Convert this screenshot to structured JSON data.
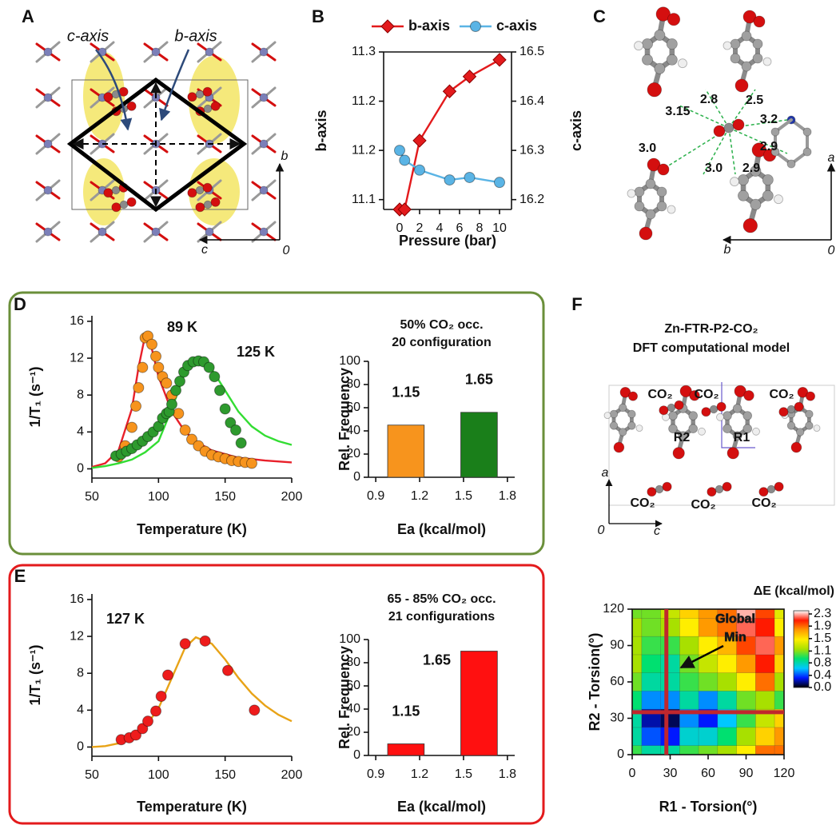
{
  "panel_labels": [
    "A",
    "B",
    "C",
    "D",
    "E",
    "F"
  ],
  "panel_a": {
    "labels": [
      "c-axis",
      "b-axis"
    ],
    "axes": [
      "b",
      "c",
      "0"
    ]
  },
  "panel_c": {
    "distances": [
      "3.15",
      "2.8",
      "2.5",
      "3.2",
      "3.0",
      "2.9",
      "3.0",
      "2.9"
    ],
    "axes": [
      "b",
      "0",
      "a"
    ]
  },
  "panel_f_model": {
    "title": "Zn-FTR-P2-CO₂",
    "subtitle": "DFT computational model",
    "molecule_labels": [
      "CO₂",
      "CO₂",
      "CO₂",
      "CO₂",
      "CO₂",
      "CO₂"
    ],
    "ring_labels": [
      "R2",
      "R1"
    ],
    "axes": [
      "a",
      "0",
      "c"
    ]
  },
  "chart_data": [
    {
      "type": "line",
      "legend": "top",
      "box": true,
      "x": [
        0,
        0.5,
        2,
        5,
        7,
        10
      ],
      "xlim": [
        -1.6,
        11.2
      ],
      "xticks": [
        0,
        2,
        4,
        6,
        8,
        10
      ],
      "ylim": [
        11.09,
        11.25
      ],
      "yticks": [
        11.1,
        {
          "value": 11.15,
          "label": "11.2"
        },
        11.2,
        {
          "value": 11.25,
          "label": "11.3"
        }
      ],
      "y2lim": [
        16.18,
        16.5
      ],
      "y2ticks": [
        16.2,
        16.3,
        16.4,
        16.5
      ],
      "xlabel": "Pressure (bar)",
      "ylabel": "b-axis",
      "y2label": "c-axis",
      "series": [
        {
          "name": "b-axis",
          "color": "#e31a1c",
          "marker": "diamond",
          "values": [
            11.09,
            11.09,
            11.16,
            11.21,
            11.225,
            11.242
          ]
        },
        {
          "name": "c-axis",
          "color": "#5ab4e5",
          "marker": "circle",
          "axis": "y2",
          "values": [
            16.3,
            16.28,
            16.26,
            16.24,
            16.245,
            16.235
          ]
        }
      ]
    },
    {
      "type": "scatter",
      "xlabel": "Temperature (K)",
      "ylabel": "1/T₁ (s⁻¹)",
      "xlim": [
        50,
        200
      ],
      "xticks": [
        50,
        100,
        150,
        200
      ],
      "ylim": [
        -1,
        16.6
      ],
      "yticks": [
        0,
        4,
        8,
        12,
        16
      ],
      "series": [
        {
          "mode": "line",
          "color": "#e8202a",
          "x": [
            50,
            60,
            70,
            80,
            85,
            90,
            95,
            100,
            110,
            120,
            130,
            140,
            160,
            180,
            200
          ],
          "values": [
            0.2,
            0.6,
            2,
            6.5,
            11,
            14.5,
            13,
            10,
            6.2,
            4,
            2.8,
            2,
            1.2,
            0.9,
            0.7
          ]
        },
        {
          "mode": "line",
          "color": "#33dd33",
          "x": [
            50,
            60,
            70,
            80,
            90,
            100,
            110,
            120,
            130,
            140,
            150,
            160,
            170,
            180,
            190,
            200
          ],
          "values": [
            0.1,
            0.3,
            0.6,
            1,
            1.8,
            3,
            6.5,
            10.5,
            11.8,
            10.8,
            8.5,
            6.2,
            4.6,
            3.6,
            3,
            2.6
          ]
        },
        {
          "mode": "markers",
          "color": "#f7941d",
          "x": [
            70,
            75,
            80,
            83,
            85,
            88,
            90,
            92,
            95,
            98,
            100,
            103,
            106,
            110,
            115,
            120,
            125,
            130,
            135,
            140,
            145,
            150,
            155,
            160,
            165,
            170
          ],
          "values": [
            1.3,
            2.5,
            4.5,
            6.8,
            8.8,
            11,
            14.2,
            14.4,
            13.5,
            12.2,
            11,
            10,
            9.3,
            8,
            6,
            4.2,
            3.2,
            2.5,
            1.9,
            1.5,
            1.3,
            1.1,
            0.9,
            0.8,
            0.7,
            0.6
          ]
        },
        {
          "mode": "markers",
          "color": "#2e9a2e",
          "x": [
            68,
            72,
            76,
            80,
            84,
            88,
            92,
            96,
            100,
            103,
            106,
            108,
            110,
            113,
            116,
            119,
            122,
            126,
            130,
            134,
            138,
            142,
            146,
            150,
            154,
            158,
            162
          ],
          "values": [
            1.4,
            1.6,
            1.9,
            2.2,
            2.6,
            3,
            3.5,
            4,
            4.6,
            5.5,
            6,
            6.2,
            7,
            8.5,
            9.5,
            10.5,
            11.2,
            11.6,
            11.7,
            11.6,
            11,
            10,
            8.5,
            6.5,
            5,
            4.2,
            2.8
          ]
        }
      ],
      "annotations": [
        {
          "text": "89 K",
          "color": "#f7941d"
        },
        {
          "text": "125 K",
          "color": "#1a8a1a"
        }
      ]
    },
    {
      "type": "bar",
      "title": [
        "50% CO₂ occ.",
        "20 configuration"
      ],
      "x": [
        1.15,
        1.65
      ],
      "values": [
        45,
        56
      ],
      "colors": [
        "#f7941d",
        "#1a7f1a"
      ],
      "xlim": [
        0.85,
        1.85
      ],
      "xticks": [
        0.9,
        1.2,
        1.5,
        1.8
      ],
      "ylim": [
        0,
        100
      ],
      "yticks": [
        0,
        20,
        40,
        60,
        80,
        100
      ],
      "xlabel": "Ea (kcal/mol)",
      "ylabel": "Rel. Frequency"
    },
    {
      "type": "scatter",
      "xlabel": "Temperature (K)",
      "ylabel": "1/T₁ (s⁻¹)",
      "xlim": [
        50,
        200
      ],
      "xticks": [
        50,
        100,
        150,
        200
      ],
      "ylim": [
        -1,
        16.6
      ],
      "yticks": [
        0,
        4,
        8,
        12,
        16
      ],
      "series": [
        {
          "mode": "line",
          "color": "#e8a317",
          "x": [
            50,
            60,
            70,
            80,
            90,
            100,
            110,
            120,
            128,
            140,
            150,
            160,
            170,
            180,
            190,
            200
          ],
          "values": [
            0,
            0.1,
            0.4,
            1,
            2.2,
            4.2,
            7.5,
            10.8,
            11.9,
            11.2,
            9.5,
            7.5,
            5.8,
            4.5,
            3.5,
            2.8
          ]
        },
        {
          "mode": "markers",
          "color": "#ee1c1c",
          "x": [
            72,
            78,
            83,
            88,
            92,
            98,
            102,
            107,
            120,
            135,
            152,
            172
          ],
          "values": [
            0.8,
            1,
            1.3,
            2,
            2.8,
            3.9,
            5.5,
            7.8,
            11.2,
            11.5,
            8.3,
            4
          ]
        }
      ],
      "annotations": [
        {
          "text": "127 K",
          "color": "#ee1c1c"
        }
      ]
    },
    {
      "type": "bar",
      "title": [
        "65 - 85% CO₂ occ.",
        "21 configurations"
      ],
      "x": [
        1.15,
        1.65
      ],
      "values": [
        10,
        90
      ],
      "colors": [
        "#ff1010",
        "#ff1010"
      ],
      "xlim": [
        0.85,
        1.85
      ],
      "xticks": [
        0.9,
        1.2,
        1.5,
        1.8
      ],
      "ylim": [
        0,
        100
      ],
      "yticks": [
        0,
        20,
        40,
        60,
        80,
        100
      ],
      "xlabel": "Ea (kcal/mol)",
      "ylabel": "Rel. Frequency"
    },
    {
      "type": "contour",
      "title": "ΔE (kcal/mol)",
      "xlabel": "R1 - Torsion(°)",
      "ylabel": "R2 - Torsion(°)",
      "x": [
        0,
        15,
        30,
        45,
        60,
        75,
        90,
        105,
        120
      ],
      "y": [
        0,
        15,
        30,
        45,
        60,
        75,
        90,
        105,
        120
      ],
      "z": [
        [
          1.0,
          0.8,
          0.8,
          1.0,
          1.1,
          1.2,
          1.5,
          1.9,
          1.9
        ],
        [
          0.8,
          0.4,
          0.3,
          0.7,
          0.7,
          0.9,
          1.2,
          1.6,
          1.8
        ],
        [
          0.8,
          0.2,
          0.1,
          0.5,
          0.3,
          0.6,
          1.0,
          1.3,
          1.6
        ],
        [
          0.9,
          0.5,
          0.5,
          0.8,
          0.5,
          0.8,
          1.1,
          1.2,
          1.0
        ],
        [
          1.1,
          0.8,
          0.8,
          1.0,
          1.1,
          1.2,
          1.5,
          1.9,
          1.2
        ],
        [
          1.2,
          0.9,
          0.8,
          1.1,
          1.3,
          1.5,
          1.8,
          2.1,
          1.6
        ],
        [
          1.2,
          1.0,
          1.0,
          1.2,
          1.5,
          1.7,
          2.0,
          2.2,
          1.8
        ],
        [
          1.2,
          1.1,
          1.2,
          1.5,
          1.8,
          1.9,
          2.2,
          2.1,
          1.5
        ],
        [
          1.1,
          1.1,
          1.3,
          1.6,
          1.8,
          1.9,
          2.3,
          2.0,
          1.4
        ]
      ],
      "xlim": [
        0,
        120
      ],
      "ylim": [
        0,
        120
      ],
      "xticks": [
        0,
        30,
        60,
        90,
        120
      ],
      "yticks": [
        0,
        30,
        60,
        90,
        120
      ],
      "clim": [
        0,
        2.4
      ],
      "cticks": [
        {
          "value": 0,
          "label": "0.0"
        },
        {
          "value": 0.38,
          "label": "0.4"
        },
        {
          "value": 0.77,
          "label": "0.8"
        },
        {
          "value": 1.14,
          "label": "1.1"
        },
        {
          "value": 1.53,
          "label": "1.5"
        },
        {
          "value": 1.92,
          "label": "1.9"
        },
        2.3
      ],
      "colormap": [
        "#000000",
        "#0018ff",
        "#00c8ff",
        "#00e070",
        "#a8e000",
        "#ffee00",
        "#ff9a00",
        "#ff1a00",
        "#ffffff"
      ],
      "crosshair": {
        "x": 27,
        "y": 35,
        "color": "#c0272d"
      },
      "annotation": {
        "text": [
          "Global",
          "Min"
        ]
      }
    }
  ]
}
